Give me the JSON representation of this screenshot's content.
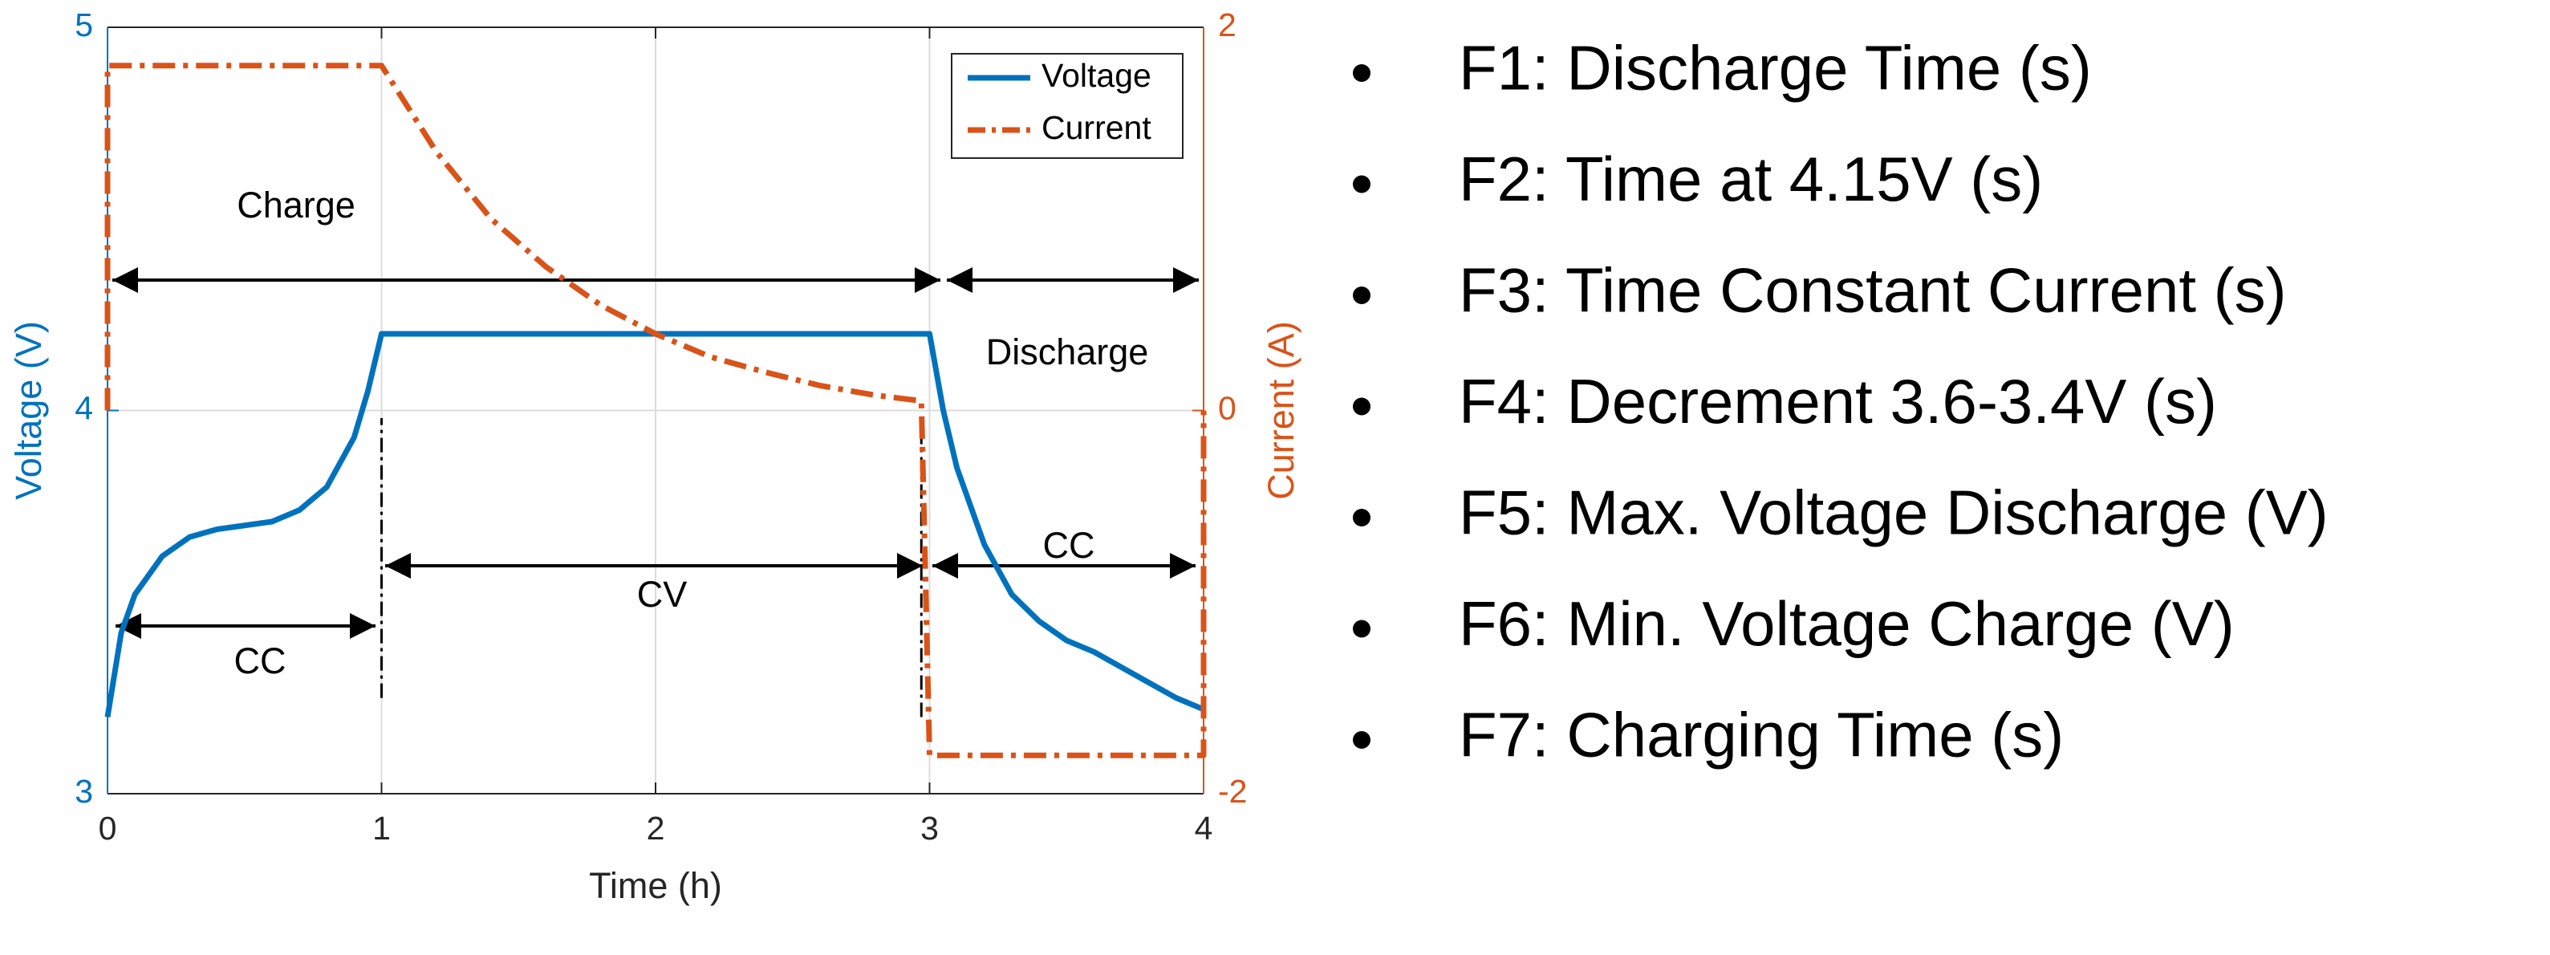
{
  "chart_data": {
    "type": "line",
    "xlabel": "Time (h)",
    "ylabel": "Voltage (V)",
    "y2label": "Current (A)",
    "xlim": [
      0,
      4
    ],
    "xticks": [
      0,
      1,
      2,
      3,
      4
    ],
    "ylim": [
      3,
      5
    ],
    "yticks": [
      3,
      4,
      5
    ],
    "y2lim": [
      -2,
      2
    ],
    "y2ticks": [
      -2,
      0,
      2
    ],
    "legend": "upper right",
    "series": [
      {
        "name": "Voltage",
        "color": "#0072bd",
        "axis": "y",
        "x": [
          0,
          0.05,
          0.1,
          0.2,
          0.3,
          0.4,
          0.5,
          0.6,
          0.7,
          0.8,
          0.9,
          0.95,
          1.0,
          3.0,
          3.05,
          3.1,
          3.2,
          3.3,
          3.4,
          3.5,
          3.6,
          3.7,
          3.8,
          3.9,
          4.0
        ],
        "values": [
          3.2,
          3.42,
          3.52,
          3.62,
          3.67,
          3.69,
          3.7,
          3.71,
          3.74,
          3.8,
          3.93,
          4.05,
          4.2,
          4.2,
          4.0,
          3.85,
          3.65,
          3.52,
          3.45,
          3.4,
          3.37,
          3.33,
          3.29,
          3.25,
          3.22
        ]
      },
      {
        "name": "Current",
        "color": "#d95319",
        "axis": "y2",
        "x": [
          0,
          0,
          1.0,
          1.2,
          1.4,
          1.6,
          1.8,
          2.0,
          2.2,
          2.4,
          2.6,
          2.8,
          2.97,
          3.0,
          4.0,
          4.0
        ],
        "values": [
          0,
          1.8,
          1.8,
          1.35,
          1.0,
          0.75,
          0.55,
          0.4,
          0.28,
          0.2,
          0.13,
          0.08,
          0.05,
          -1.8,
          -1.8,
          0
        ]
      }
    ],
    "annotations": [
      "Charge",
      "Discharge",
      "CV",
      "CC",
      "CC"
    ]
  },
  "bullets": [
    "F1: Discharge Time (s)",
    "F2: Time at 4.15V (s)",
    "F3: Time Constant Current (s)",
    "F4: Decrement 3.6-3.4V (s)",
    "F5: Max. Voltage Discharge (V)",
    "F6: Min. Voltage Charge (V)",
    "F7: Charging Time (s)"
  ]
}
